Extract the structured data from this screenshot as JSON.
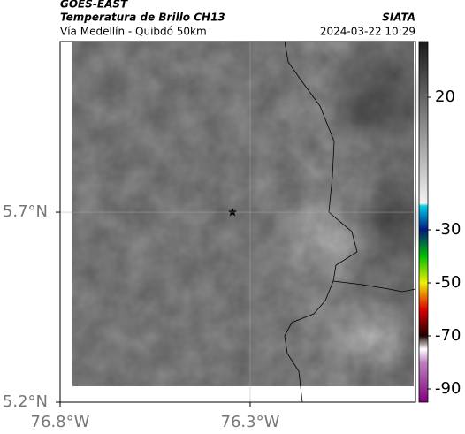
{
  "map": {
    "title": "GOES-EAST",
    "subtitle": "Temperatura de Brillo CH13",
    "region": "Vía Medellín - Quibdó 50km",
    "source": "SIATA",
    "timestamp": "2024-03-22 10:29",
    "xlim": [
      -76.8,
      -75.865
    ],
    "ylim": [
      5.2,
      6.149
    ],
    "xticks": [
      {
        "value": -76.8,
        "label": "76.8°W"
      },
      {
        "value": -76.3,
        "label": "76.3°W"
      }
    ],
    "yticks": [
      {
        "value": 5.2,
        "label": "5.2°N"
      },
      {
        "value": 5.7,
        "label": "5.7°N"
      }
    ],
    "grid": true,
    "colorbar": {
      "clim": [
        -95,
        41
      ],
      "ticks": [
        20,
        -30,
        -50,
        -70,
        -90
      ],
      "stops": [
        {
          "value": 41,
          "color": "#1a1a1a"
        },
        {
          "value": -20,
          "color": "#f2f2f2"
        },
        {
          "value": -21,
          "color": "#00d0e8"
        },
        {
          "value": -30,
          "color": "#001a80"
        },
        {
          "value": -40,
          "color": "#00c000"
        },
        {
          "value": -50,
          "color": "#f0f000"
        },
        {
          "value": -60,
          "color": "#e00000"
        },
        {
          "value": -70,
          "color": "#200000"
        },
        {
          "value": -75,
          "color": "#ffffff"
        },
        {
          "value": -80,
          "color": "#c080c0"
        },
        {
          "value": -95,
          "color": "#800080"
        }
      ]
    }
  }
}
